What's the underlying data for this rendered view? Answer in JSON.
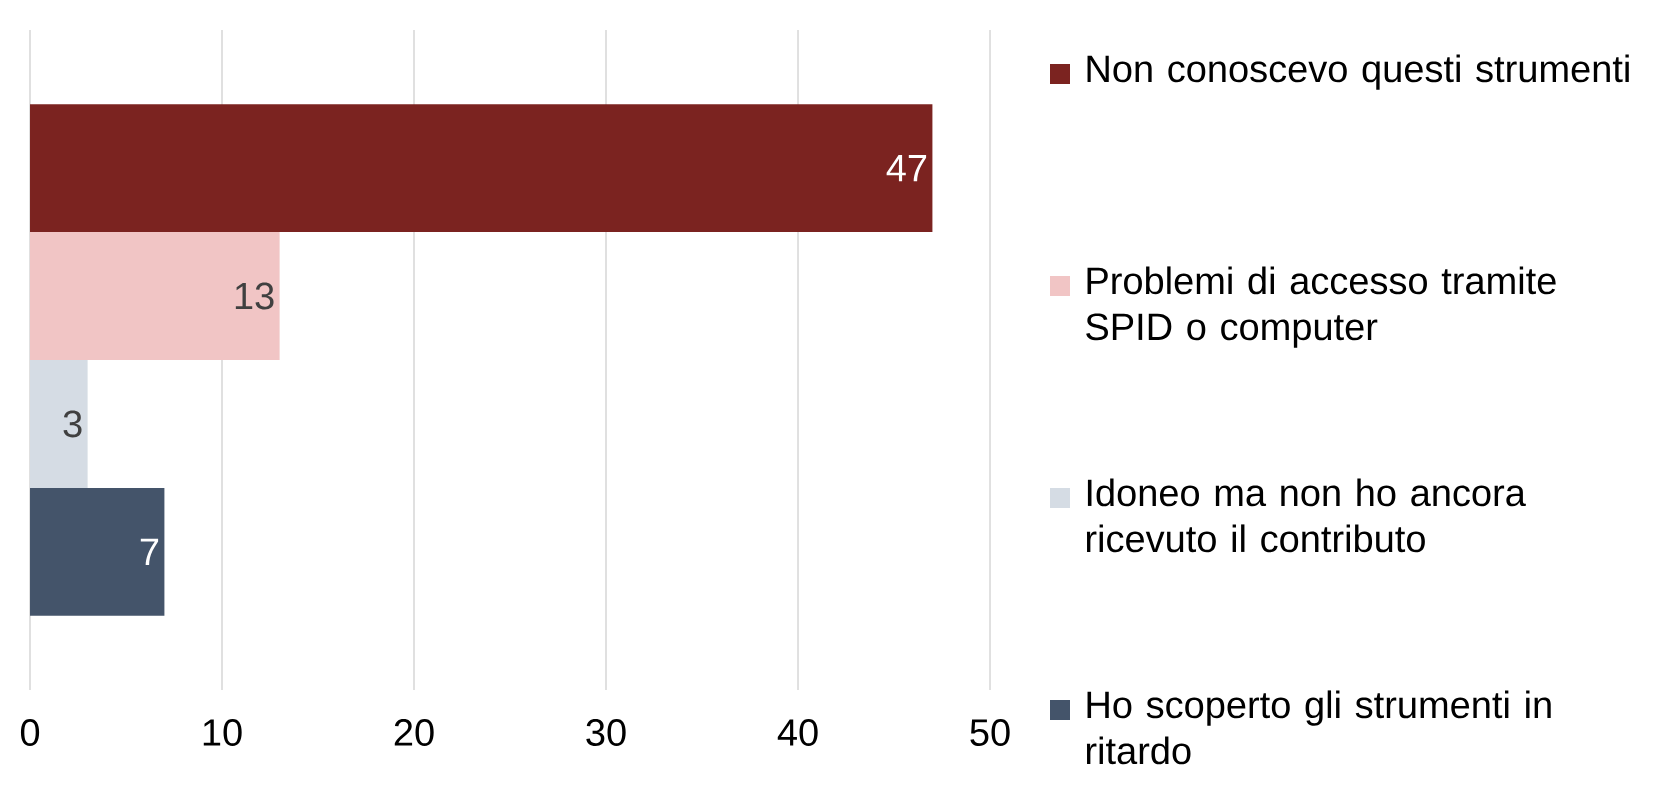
{
  "chart_data": {
    "type": "bar",
    "orientation": "horizontal",
    "categories": [
      null
    ],
    "series": [
      {
        "name": "Non conoscevo questi strumenti",
        "color": "#7b2320",
        "values": [
          47
        ]
      },
      {
        "name": "Problemi di accesso tramite SPID o computer",
        "color": "#f1c5c5",
        "values": [
          13
        ]
      },
      {
        "name": "Idoneo ma non ho ancora ricevuto il contributo",
        "color": "#d5dce4",
        "values": [
          3
        ]
      },
      {
        "name": "Ho scoperto gli strumenti in ritardo",
        "color": "#44546a",
        "values": [
          7
        ]
      }
    ],
    "xlim": [
      0,
      50
    ],
    "xticks": [
      0,
      10,
      20,
      30,
      40,
      50
    ],
    "grid": "x",
    "legend": "right",
    "data_labels": true
  }
}
